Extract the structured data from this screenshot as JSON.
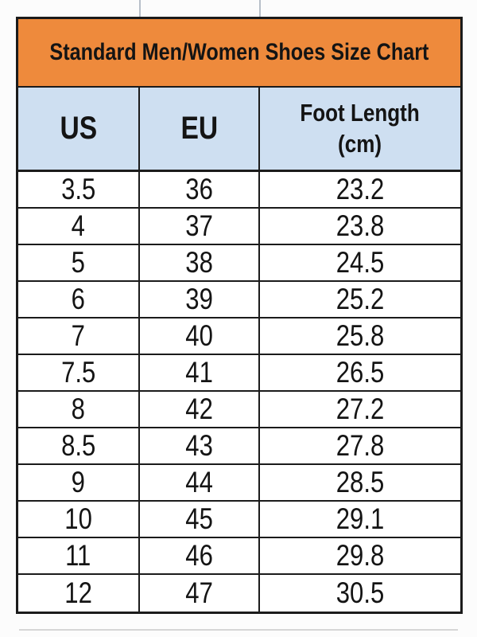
{
  "title": "Standard Men/Women Shoes Size Chart",
  "colors": {
    "title_bg": "#ee8a3c",
    "header_bg": "#cedff1",
    "border": "#1b1b1b",
    "gridline_faint": "#b7bfc9",
    "text": "#141414",
    "row_bg": "#ffffff"
  },
  "table": {
    "headers": [
      {
        "label": "US"
      },
      {
        "label": "EU"
      },
      {
        "label": "Foot Length",
        "sub": "(cm)"
      }
    ],
    "rows": [
      [
        "3.5",
        "36",
        "23.2"
      ],
      [
        "4",
        "37",
        "23.8"
      ],
      [
        "5",
        "38",
        "24.5"
      ],
      [
        "6",
        "39",
        "25.2"
      ],
      [
        "7",
        "40",
        "25.8"
      ],
      [
        "7.5",
        "41",
        "26.5"
      ],
      [
        "8",
        "42",
        "27.2"
      ],
      [
        "8.5",
        "43",
        "27.8"
      ],
      [
        "9",
        "44",
        "28.5"
      ],
      [
        "10",
        "45",
        "29.1"
      ],
      [
        "11",
        "46",
        "29.8"
      ],
      [
        "12",
        "47",
        "30.5"
      ]
    ]
  },
  "chart_data": {
    "type": "table",
    "title": "Standard Men/Women Shoes Size Chart",
    "columns": [
      "US",
      "EU",
      "Foot Length (cm)"
    ],
    "rows": [
      [
        3.5,
        36,
        23.2
      ],
      [
        4,
        37,
        23.8
      ],
      [
        5,
        38,
        24.5
      ],
      [
        6,
        39,
        25.2
      ],
      [
        7,
        40,
        25.8
      ],
      [
        7.5,
        41,
        26.5
      ],
      [
        8,
        42,
        27.2
      ],
      [
        8.5,
        43,
        27.8
      ],
      [
        9,
        44,
        28.5
      ],
      [
        10,
        45,
        29.1
      ],
      [
        11,
        46,
        29.8
      ],
      [
        12,
        47,
        30.5
      ]
    ]
  }
}
